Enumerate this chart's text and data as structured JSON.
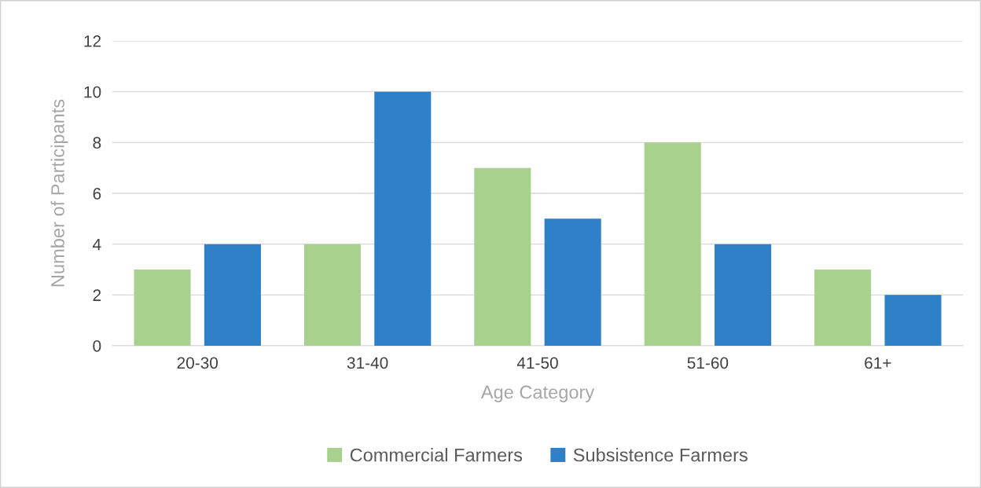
{
  "chart_data": {
    "type": "bar",
    "xlabel": "Age Category",
    "ylabel": "Number of Participants",
    "categories": [
      "20-30",
      "31-40",
      "41-50",
      "51-60",
      "61+"
    ],
    "series": [
      {
        "name": "Commercial Farmers",
        "color": "#a9d18e",
        "values": [
          3,
          4,
          7,
          8,
          3
        ]
      },
      {
        "name": "Subsistence Farmers",
        "color": "#2e80c8",
        "values": [
          4,
          10,
          5,
          4,
          2
        ]
      }
    ],
    "ylim": [
      0,
      12
    ],
    "yticks": [
      0,
      2,
      4,
      6,
      8,
      10,
      12
    ],
    "grid": "y",
    "legend": "bottom"
  }
}
